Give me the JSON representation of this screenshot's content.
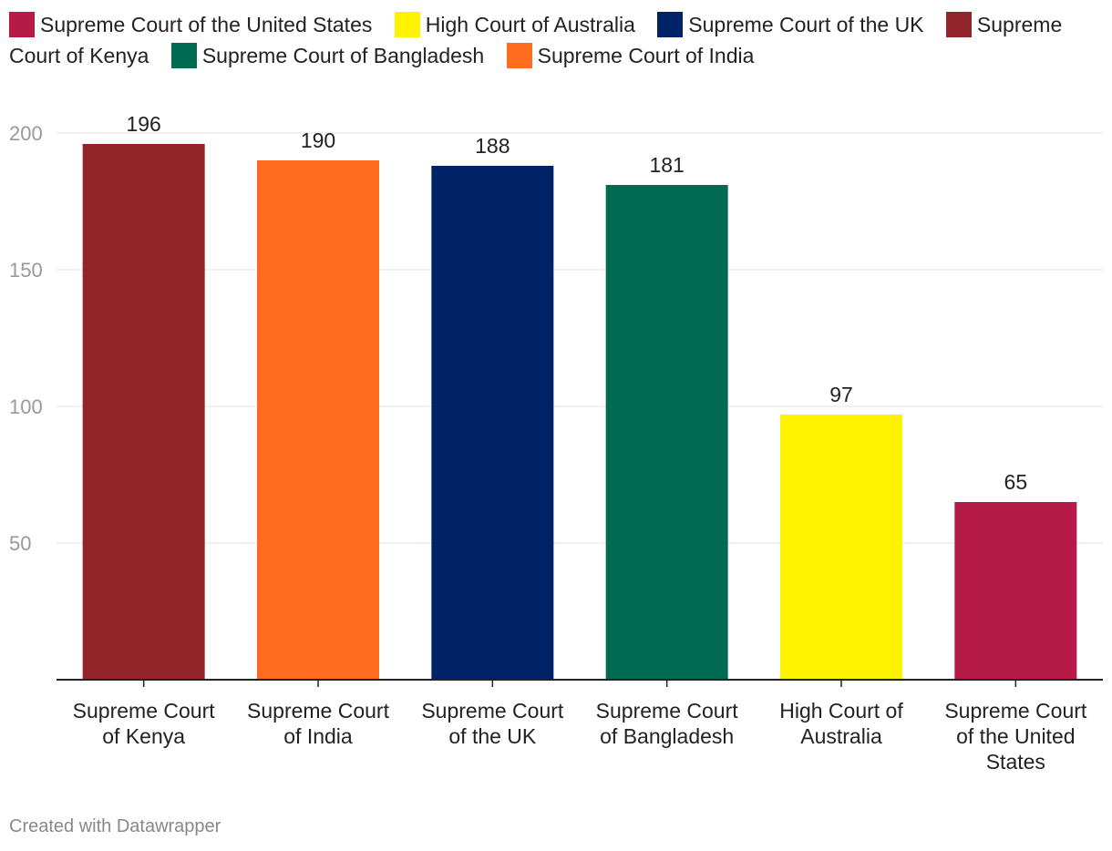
{
  "chart_data": {
    "type": "bar",
    "categories": [
      "Supreme Court of Kenya",
      "Supreme Court of India",
      "Supreme Court of the UK",
      "Supreme Court of Bangladesh",
      "High Court of Australia",
      "Supreme Court of the United States"
    ],
    "category_labels": [
      [
        "Supreme Court",
        "of Kenya"
      ],
      [
        "Supreme Court",
        "of India"
      ],
      [
        "Supreme Court",
        "of the UK"
      ],
      [
        "Supreme Court",
        "of Bangladesh"
      ],
      [
        "High Court of",
        "Australia"
      ],
      [
        "Supreme Court",
        "of the United",
        "States"
      ]
    ],
    "values": [
      196,
      190,
      188,
      181,
      97,
      65
    ],
    "colors": [
      "#922529",
      "#ff6b1f",
      "#002266",
      "#006b50",
      "#fff200",
      "#b61a47"
    ],
    "ylim": [
      0,
      200
    ],
    "yticks": [
      50,
      100,
      150,
      200
    ],
    "grid": true,
    "legend_position": "top",
    "legend": [
      {
        "label": "Supreme Court of the United States",
        "color": "#b61a47"
      },
      {
        "label": "High Court of Australia",
        "color": "#fff200"
      },
      {
        "label": "Supreme Court of the UK",
        "color": "#002266"
      },
      {
        "label": "Supreme Court of Kenya",
        "color": "#922529"
      },
      {
        "label": "Supreme Court of Bangladesh",
        "color": "#006b50"
      },
      {
        "label": "Supreme Court of India",
        "color": "#ff6b1f"
      }
    ]
  },
  "footer": {
    "credit": "Created with Datawrapper"
  }
}
